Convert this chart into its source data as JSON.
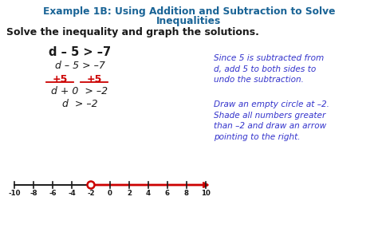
{
  "title_line1": "Example 1B: Using Addition and Subtraction to Solve",
  "title_line2": "Inequalities",
  "subtitle": "Solve the inequality and graph the solutions.",
  "title_color": "#1a6496",
  "subtitle_color": "#1a1a1a",
  "bg_color": "#ffffff",
  "math_bold": "d – 5 > –7",
  "math_step1": "d – 5 > –7",
  "math_plus5_left": "+5",
  "math_plus5_right": "+5",
  "math_step3": "d + 0  > –2",
  "math_step4": "d  > –2",
  "note1": "Since 5 is subtracted from\nd, add 5 to both sides to\nundo the subtraction.",
  "note2": "Draw an empty circle at –2.\nShade all numbers greater\nthan –2 and draw an arrow\npointing to the right.",
  "note_color": "#3333cc",
  "red_color": "#cc0000",
  "ticks": [
    -10,
    -8,
    -6,
    -4,
    -2,
    0,
    2,
    4,
    6,
    8,
    10
  ],
  "open_circle_at": -2
}
